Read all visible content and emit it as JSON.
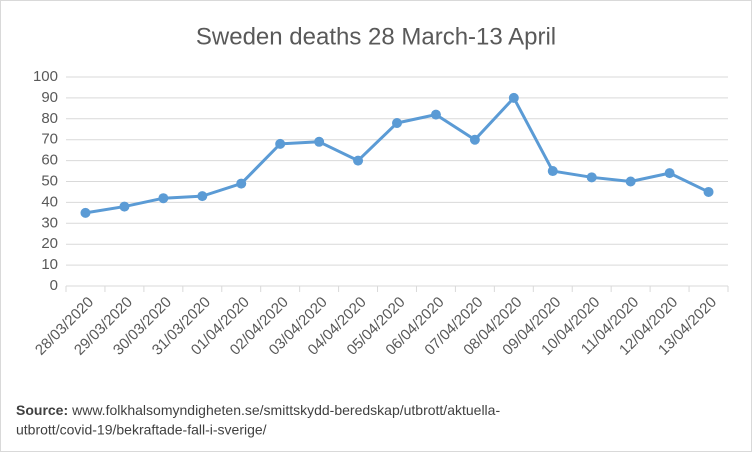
{
  "chart_data": {
    "type": "line",
    "title": "Sweden deaths 28 March-13 April",
    "categories": [
      "28/03/2020",
      "29/03/2020",
      "30/03/2020",
      "31/03/2020",
      "01/04/2020",
      "02/04/2020",
      "03/04/2020",
      "04/04/2020",
      "05/04/2020",
      "06/04/2020",
      "07/04/2020",
      "08/04/2020",
      "09/04/2020",
      "10/04/2020",
      "11/04/2020",
      "12/04/2020",
      "13/04/2020"
    ],
    "values": [
      35,
      38,
      42,
      43,
      49,
      68,
      69,
      60,
      78,
      82,
      70,
      90,
      55,
      52,
      50,
      54,
      45
    ],
    "color": "#5b9bd5",
    "ylim": [
      0,
      100
    ],
    "yticks": [
      0,
      10,
      20,
      30,
      40,
      50,
      60,
      70,
      80,
      90,
      100
    ],
    "grid": true,
    "source_label": "Source:",
    "source_lines": [
      "www.folkhalsomyndigheten.se/smittskydd-beredskap/utbrott/aktuella-",
      "utbrott/covid-19/bekraftade-fall-i-sverige/"
    ]
  }
}
